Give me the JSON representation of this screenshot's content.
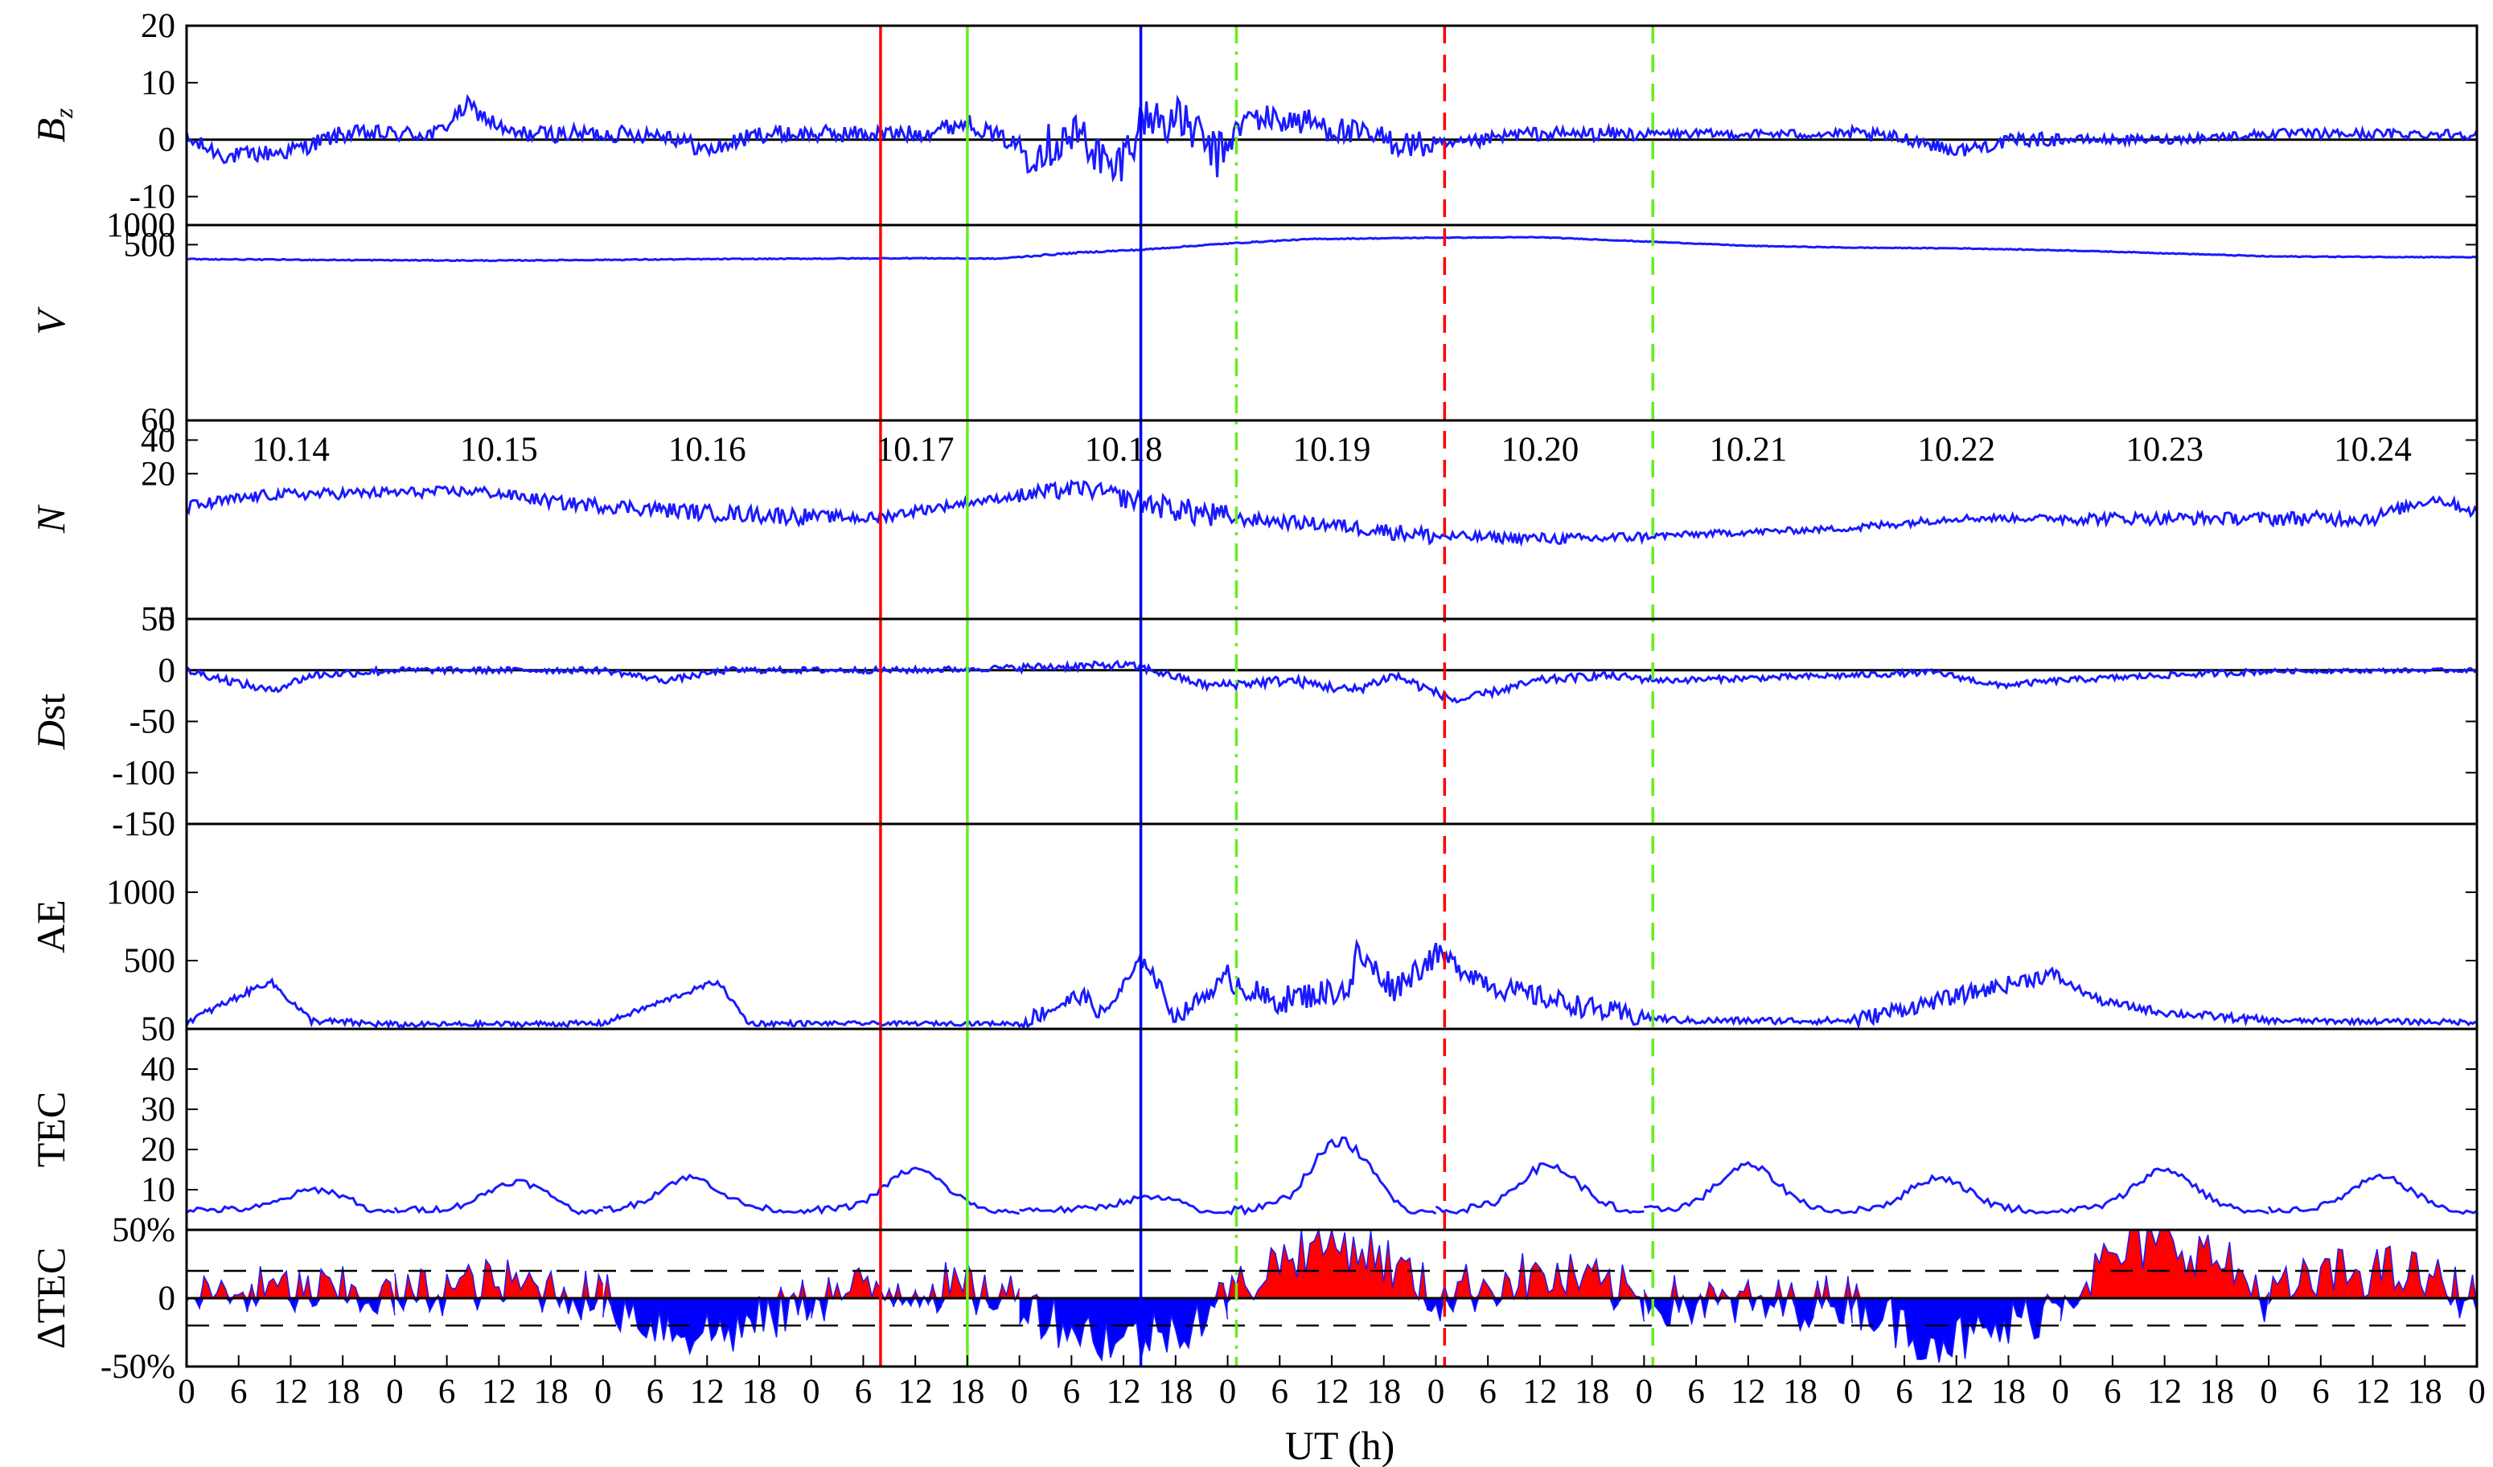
{
  "chart_data": {
    "type": "line",
    "xlabel": "UT (h)",
    "x_ticks": [
      "0",
      "6",
      "12",
      "18",
      "0",
      "6",
      "12",
      "18",
      "0",
      "6",
      "12",
      "18",
      "0",
      "6",
      "12",
      "18",
      "0",
      "6",
      "12",
      "18",
      "0",
      "6",
      "12",
      "18",
      "0",
      "6",
      "12",
      "18",
      "0",
      "6",
      "12",
      "18",
      "0",
      "6",
      "12",
      "18",
      "0",
      "6",
      "12",
      "18",
      "0",
      "6",
      "12",
      "18",
      "0"
    ],
    "date_labels": [
      "10.14",
      "10.15",
      "10.16",
      "10.17",
      "10.18",
      "10.19",
      "10.20",
      "10.21",
      "10.22",
      "10.23",
      "10.24"
    ],
    "events": [
      {
        "day": 3.333,
        "color": "#ff0000",
        "style": "solid"
      },
      {
        "day": 3.75,
        "color": "#66ee22",
        "style": "solid"
      },
      {
        "day": 4.583,
        "color": "#0000ff",
        "style": "solid"
      },
      {
        "day": 5.042,
        "color": "#66ee22",
        "style": "dashdot"
      },
      {
        "day": 6.042,
        "color": "#ff0000",
        "style": "dashed"
      },
      {
        "day": 7.042,
        "color": "#66ee22",
        "style": "dashed"
      }
    ],
    "panels": [
      {
        "name": "Bz",
        "ylabel_main": "B",
        "ylabel_sub": "z",
        "ylim": [
          -15,
          20
        ],
        "yticks": [
          "20",
          "10",
          "0",
          "-10"
        ],
        "zero_line": true,
        "anchors": [
          [
            0,
            0
          ],
          [
            0.2,
            -3
          ],
          [
            0.5,
            -2
          ],
          [
            0.75,
            1
          ],
          [
            1.2,
            1
          ],
          [
            1.35,
            6
          ],
          [
            1.55,
            1
          ],
          [
            2.3,
            1
          ],
          [
            2.5,
            -2
          ],
          [
            2.75,
            1
          ],
          [
            3.2,
            1
          ],
          [
            3.5,
            1
          ],
          [
            3.75,
            3
          ],
          [
            4.05,
            -2
          ],
          [
            4.3,
            1
          ],
          [
            4.45,
            -6
          ],
          [
            4.6,
            4
          ],
          [
            4.8,
            3
          ],
          [
            4.95,
            -3
          ],
          [
            5.1,
            4
          ],
          [
            5.4,
            3
          ],
          [
            5.6,
            1
          ],
          [
            5.9,
            -1
          ],
          [
            6.1,
            -1
          ],
          [
            6.4,
            1
          ],
          [
            7,
            1
          ],
          [
            8,
            1
          ],
          [
            8.3,
            0
          ],
          [
            8.5,
            -2
          ],
          [
            8.8,
            0
          ],
          [
            9.5,
            0
          ],
          [
            10,
            1
          ],
          [
            11,
            1
          ]
        ],
        "noise": [
          1.5,
          1.5,
          1.5,
          1.5,
          4.0,
          2.5,
          1.2,
          0.8,
          1.2,
          0.8,
          0.9
        ]
      },
      {
        "name": "V",
        "ylabel_main": "V",
        "ylim": [
          1,
          1000
        ],
        "log": true,
        "yticks": [
          "1000",
          "500"
        ],
        "anchors": [
          [
            0,
            300
          ],
          [
            0.8,
            290
          ],
          [
            1.5,
            285
          ],
          [
            2.5,
            300
          ],
          [
            3.5,
            310
          ],
          [
            3.9,
            305
          ],
          [
            4.3,
            380
          ],
          [
            4.6,
            420
          ],
          [
            5.0,
            520
          ],
          [
            5.4,
            610
          ],
          [
            6.0,
            640
          ],
          [
            6.5,
            650
          ],
          [
            7.0,
            560
          ],
          [
            7.5,
            480
          ],
          [
            8.0,
            450
          ],
          [
            8.5,
            440
          ],
          [
            9.0,
            410
          ],
          [
            9.5,
            370
          ],
          [
            10,
            330
          ],
          [
            11,
            320
          ]
        ],
        "noise": [
          5,
          5,
          5,
          5,
          10,
          10,
          8,
          6,
          6,
          5,
          5
        ]
      },
      {
        "name": "N",
        "ylabel_main": "N",
        "ylim": [
          1,
          60
        ],
        "log": true,
        "yticks": [
          "60",
          "40",
          "20",
          "5"
        ],
        "anchors": [
          [
            0,
            10
          ],
          [
            0.4,
            13
          ],
          [
            1.4,
            14
          ],
          [
            1.8,
            11
          ],
          [
            2.5,
            9
          ],
          [
            3.3,
            8
          ],
          [
            3.9,
            12
          ],
          [
            4.3,
            15
          ],
          [
            4.6,
            11
          ],
          [
            5.0,
            8
          ],
          [
            5.5,
            7
          ],
          [
            6.0,
            5.5
          ],
          [
            6.7,
            5.2
          ],
          [
            7.0,
            5.5
          ],
          [
            8.0,
            6.5
          ],
          [
            8.5,
            8
          ],
          [
            9.5,
            8
          ],
          [
            10.5,
            8
          ],
          [
            10.8,
            12
          ],
          [
            11,
            9
          ]
        ],
        "noise": [
          1.5,
          1.5,
          1.5,
          1.0,
          2.5,
          1.0,
          0.6,
          0.4,
          0.6,
          1.0,
          1.2
        ]
      },
      {
        "name": "Dst",
        "ylabel_main": "D",
        "ylabel_rest": "st",
        "ylim": [
          -150,
          50
        ],
        "yticks": [
          "50",
          "0",
          "-50",
          "-100",
          "-150"
        ],
        "zero_line": true,
        "anchors": [
          [
            0,
            0
          ],
          [
            0.4,
            -20
          ],
          [
            0.6,
            -5
          ],
          [
            1,
            0
          ],
          [
            2,
            0
          ],
          [
            2.3,
            -10
          ],
          [
            2.6,
            0
          ],
          [
            3.5,
            0
          ],
          [
            4.5,
            5
          ],
          [
            4.6,
            2
          ],
          [
            4.9,
            -15
          ],
          [
            5.3,
            -10
          ],
          [
            5.6,
            -20
          ],
          [
            5.8,
            -5
          ],
          [
            6.1,
            -30
          ],
          [
            6.5,
            -10
          ],
          [
            6.8,
            -5
          ],
          [
            7.1,
            -10
          ],
          [
            8,
            -5
          ],
          [
            8.4,
            -2
          ],
          [
            8.7,
            -15
          ],
          [
            9,
            -10
          ],
          [
            9.5,
            -5
          ],
          [
            10,
            -1
          ],
          [
            11,
            0
          ]
        ],
        "noise": [
          4,
          3,
          3,
          3,
          4,
          5,
          4,
          3,
          3,
          3,
          2
        ]
      },
      {
        "name": "AE",
        "ylabel_main": "AE",
        "ylim": [
          0,
          1500
        ],
        "yticks": [
          "1000",
          "500",
          "50"
        ],
        "anchors": [
          [
            0,
            50
          ],
          [
            0.2,
            200
          ],
          [
            0.4,
            350
          ],
          [
            0.6,
            60
          ],
          [
            1.0,
            30
          ],
          [
            2,
            40
          ],
          [
            2.55,
            350
          ],
          [
            2.7,
            40
          ],
          [
            3.5,
            40
          ],
          [
            4,
            40
          ],
          [
            4.3,
            250
          ],
          [
            4.4,
            100
          ],
          [
            4.6,
            520
          ],
          [
            4.75,
            80
          ],
          [
            5,
            380
          ],
          [
            5.2,
            200
          ],
          [
            5.6,
            300
          ],
          [
            5.55,
            650
          ],
          [
            5.8,
            300
          ],
          [
            6.0,
            550
          ],
          [
            6.3,
            300
          ],
          [
            6.6,
            200
          ],
          [
            6.9,
            100
          ],
          [
            7.2,
            60
          ],
          [
            8,
            60
          ],
          [
            8.95,
            400
          ],
          [
            9.2,
            200
          ],
          [
            9.5,
            120
          ],
          [
            10,
            60
          ],
          [
            11,
            50
          ]
        ],
        "noise": [
          25,
          20,
          20,
          15,
          60,
          100,
          80,
          25,
          60,
          30,
          20
        ]
      },
      {
        "name": "TEC",
        "ylabel_main": "TEC",
        "ylim": [
          0,
          50
        ],
        "yticks": [
          "40",
          "30",
          "20",
          "10"
        ],
        "daily_peaks": [
          10,
          12,
          13,
          15,
          8,
          22,
          16,
          16,
          13,
          15,
          13
        ],
        "peak_hour": [
          3,
          4,
          8,
          6,
          3,
          5,
          5,
          6,
          8,
          6,
          5
        ],
        "noise": [
          0.8,
          0.8,
          0.8,
          0.8,
          0.8,
          1.2,
          1.0,
          0.9,
          0.9,
          0.9,
          0.8
        ]
      },
      {
        "name": "dTEC",
        "ylabel_main": "ΔTEC",
        "ylim": [
          -50,
          50
        ],
        "yticks": [
          "50%",
          "0",
          "-50%"
        ],
        "threshold": 20,
        "seed_bias": [
          5,
          10,
          -25,
          8,
          -30,
          40,
          15,
          -5,
          -30,
          40,
          20
        ]
      }
    ]
  }
}
